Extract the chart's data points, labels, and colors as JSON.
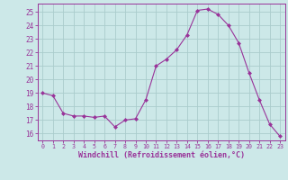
{
  "x": [
    0,
    1,
    2,
    3,
    4,
    5,
    6,
    7,
    8,
    9,
    10,
    11,
    12,
    13,
    14,
    15,
    16,
    17,
    18,
    19,
    20,
    21,
    22,
    23
  ],
  "y": [
    19.0,
    18.8,
    17.5,
    17.3,
    17.3,
    17.2,
    17.3,
    16.5,
    17.0,
    17.1,
    18.5,
    21.0,
    21.5,
    22.2,
    23.3,
    25.1,
    25.2,
    24.8,
    24.0,
    22.7,
    20.5,
    18.5,
    16.7,
    15.8
  ],
  "line_color": "#993399",
  "marker": "D",
  "marker_size": 2,
  "bg_color": "#cce8e8",
  "grid_color": "#aacccc",
  "ylim": [
    15.5,
    25.6
  ],
  "xlim": [
    -0.5,
    23.5
  ],
  "yticks": [
    16,
    17,
    18,
    19,
    20,
    21,
    22,
    23,
    24,
    25
  ],
  "xticks": [
    0,
    1,
    2,
    3,
    4,
    5,
    6,
    7,
    8,
    9,
    10,
    11,
    12,
    13,
    14,
    15,
    16,
    17,
    18,
    19,
    20,
    21,
    22,
    23
  ],
  "xlabel": "Windchill (Refroidissement éolien,°C)",
  "xlabel_color": "#993399",
  "tick_color": "#993399",
  "axis_color": "#993399",
  "xtick_fontsize": 4.8,
  "ytick_fontsize": 5.5,
  "xlabel_fontsize": 6.0
}
